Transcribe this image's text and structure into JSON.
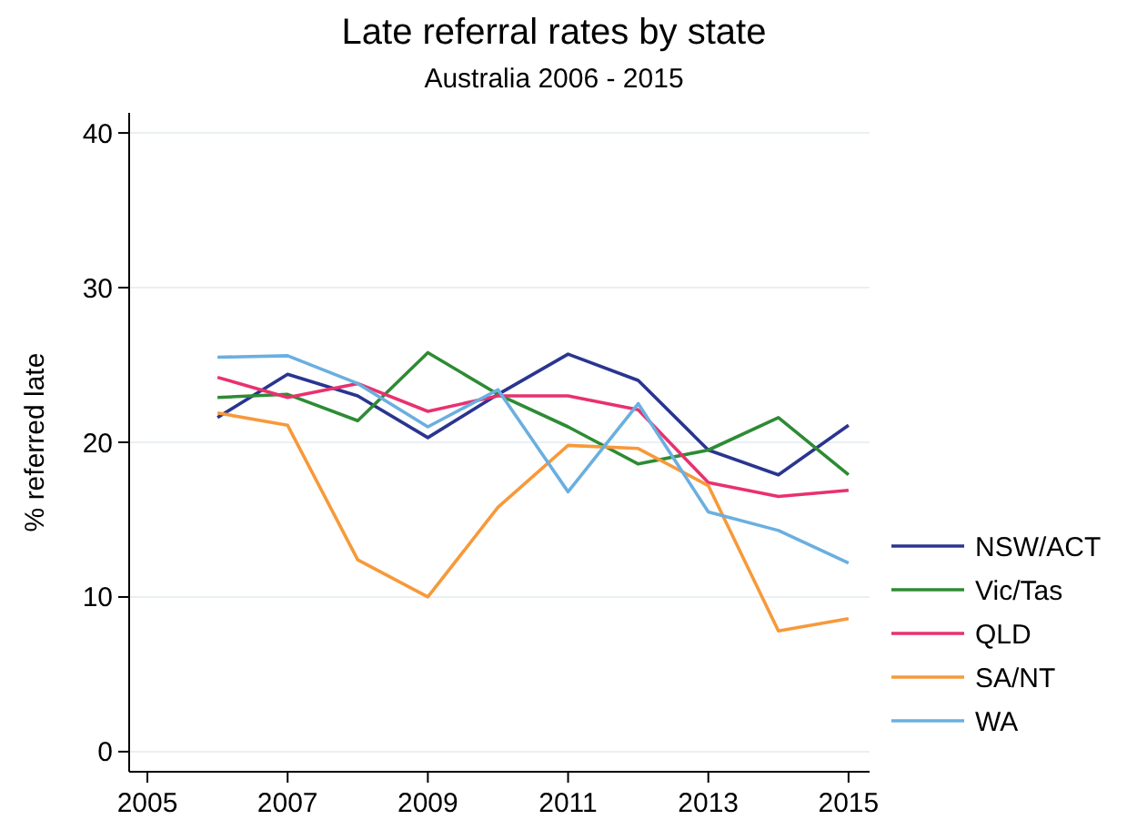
{
  "chart_data": {
    "type": "line",
    "title": "Late referral rates by state",
    "subtitle": "Australia 2006 - 2015",
    "ylabel": "% referred late",
    "x": [
      2006,
      2007,
      2008,
      2009,
      2010,
      2011,
      2012,
      2013,
      2014,
      2015
    ],
    "series": [
      {
        "name": "NSW/ACT",
        "color": "#2a3590",
        "values": [
          21.6,
          24.4,
          23.0,
          20.3,
          23.1,
          25.7,
          24.0,
          19.5,
          17.9,
          21.1
        ]
      },
      {
        "name": "Vic/Tas",
        "color": "#2e8b34",
        "values": [
          22.9,
          23.1,
          21.4,
          25.8,
          23.1,
          21.0,
          18.6,
          19.5,
          21.6,
          17.9
        ]
      },
      {
        "name": "QLD",
        "color": "#e8316f",
        "values": [
          24.2,
          22.9,
          23.8,
          22.0,
          23.0,
          23.0,
          22.1,
          17.4,
          16.5,
          16.9
        ]
      },
      {
        "name": "SA/NT",
        "color": "#f7993a",
        "values": [
          21.9,
          21.1,
          12.4,
          10.0,
          15.8,
          19.8,
          19.6,
          17.2,
          7.8,
          8.6
        ]
      },
      {
        "name": "WA",
        "color": "#6aafe0",
        "values": [
          25.5,
          25.6,
          23.8,
          21.0,
          23.4,
          16.8,
          22.5,
          15.5,
          14.3,
          12.2
        ]
      }
    ],
    "xlim": [
      2004.74,
      2015.3
    ],
    "xticks": [
      2005,
      2007,
      2009,
      2011,
      2013,
      2015
    ],
    "ylim": [
      -1.3,
      41.3
    ],
    "yticks": [
      0,
      10,
      20,
      30,
      40
    ],
    "grid": "y",
    "legend": "right",
    "line_style": "solid",
    "marker": "none"
  }
}
